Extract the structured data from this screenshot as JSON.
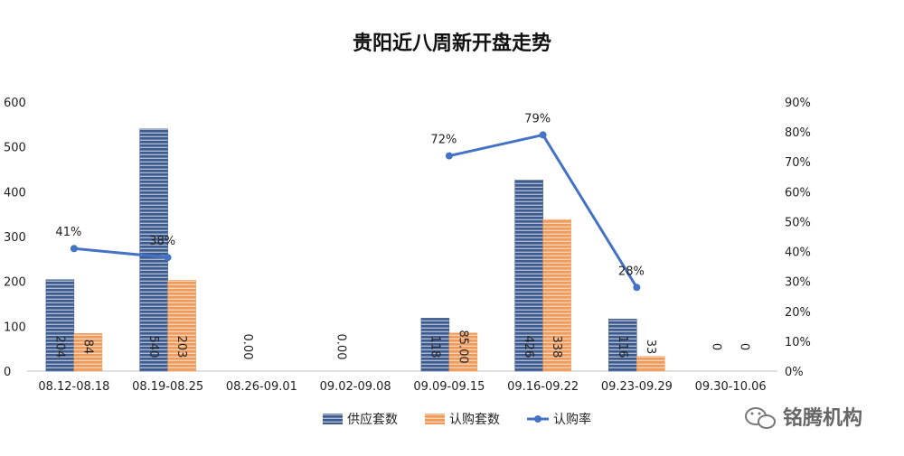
{
  "chart_data": {
    "type": "bar",
    "title": "贵阳近八周新开盘走势",
    "categories": [
      "08.12-08.18",
      "08.19-08.25",
      "08.26-09.01",
      "09.02-09.08",
      "09.09-09.15",
      "09.16-09.22",
      "09.23-09.29",
      "09.30-10.06"
    ],
    "series": [
      {
        "name": "供应套数",
        "kind": "bar",
        "axis": "left",
        "color": "#3d5a8c",
        "values": [
          204,
          540,
          0,
          0,
          118,
          426,
          116,
          0
        ],
        "labels": [
          "204",
          "540",
          "0.00",
          "0.00",
          "118",
          "426",
          "116",
          "0"
        ]
      },
      {
        "name": "认购套数",
        "kind": "bar",
        "axis": "left",
        "color": "#ee9a5a",
        "values": [
          84,
          203,
          null,
          null,
          85,
          338,
          33,
          0
        ],
        "labels": [
          "84",
          "203",
          "",
          "",
          "85.00",
          "338",
          "33",
          "0"
        ]
      },
      {
        "name": "认购率",
        "kind": "line",
        "axis": "right",
        "color": "#4472c4",
        "values": [
          0.41,
          0.38,
          null,
          null,
          0.72,
          0.79,
          0.28,
          null
        ],
        "labels": [
          "41%",
          "38%",
          "",
          "",
          "72%",
          "79%",
          "28%",
          ""
        ]
      }
    ],
    "left_axis": {
      "min": 0,
      "max": 600,
      "ticks": [
        "0",
        "100",
        "200",
        "300",
        "400",
        "500",
        "600"
      ]
    },
    "right_axis": {
      "min": 0,
      "max": 0.9,
      "ticks": [
        "0%",
        "10%",
        "20%",
        "30%",
        "40%",
        "50%",
        "60%",
        "70%",
        "80%",
        "90%"
      ]
    },
    "grid": false,
    "legend": "bottom"
  },
  "watermark": {
    "text": "铭腾机构",
    "icon": "wechat-icon"
  }
}
